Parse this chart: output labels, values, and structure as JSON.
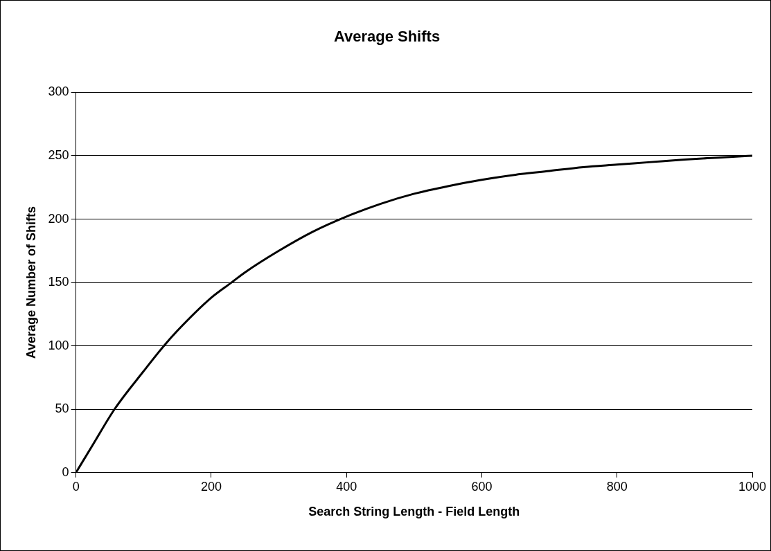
{
  "chart_data": {
    "type": "line",
    "title": "Average Shifts",
    "xlabel": "Search String Length - Field Length",
    "ylabel": "Average Number of Shifts",
    "series": [
      {
        "color": "#000000",
        "x": [
          0,
          25,
          57,
          100,
          130,
          150,
          200,
          230,
          250,
          300,
          350,
          400,
          450,
          500,
          550,
          600,
          650,
          700,
          750,
          800,
          850,
          900,
          950,
          1000
        ],
        "values": [
          0,
          22,
          50,
          80,
          100,
          112,
          138,
          150,
          158,
          175,
          190,
          202,
          212,
          220,
          226,
          231,
          235,
          238,
          241,
          243,
          245,
          247,
          248.5,
          250
        ]
      }
    ],
    "xlim": [
      0,
      1000
    ],
    "xticks": [
      0,
      200,
      400,
      600,
      800,
      1000
    ],
    "ylim": [
      0,
      300
    ],
    "yticks": [
      0,
      50,
      100,
      150,
      200,
      250,
      300
    ],
    "grid": "y",
    "legend": false,
    "marker": "none",
    "line_style": "solid"
  }
}
